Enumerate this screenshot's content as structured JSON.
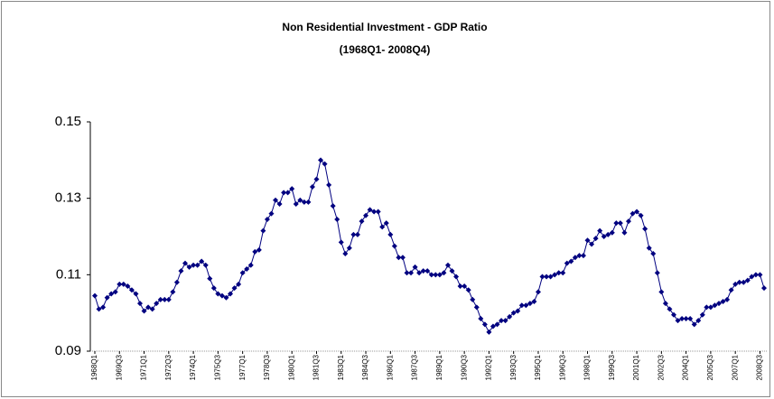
{
  "chart_data": {
    "type": "line",
    "title": "Non Residential Investment - GDP Ratio",
    "subtitle": "(1968Q1- 2008Q4)",
    "categories": [
      "1968Q1",
      null,
      null,
      null,
      null,
      null,
      "1969Q3",
      null,
      null,
      null,
      null,
      null,
      "1971Q1",
      null,
      null,
      null,
      null,
      null,
      "1972Q3",
      null,
      null,
      null,
      null,
      null,
      "1974Q1",
      null,
      null,
      null,
      null,
      null,
      "1975Q3",
      null,
      null,
      null,
      null,
      null,
      "1977Q1",
      null,
      null,
      null,
      null,
      null,
      "1978Q3",
      null,
      null,
      null,
      null,
      null,
      "1980Q1",
      null,
      null,
      null,
      null,
      null,
      "1981Q3",
      null,
      null,
      null,
      null,
      null,
      "1983Q1",
      null,
      null,
      null,
      null,
      null,
      "1984Q3",
      null,
      null,
      null,
      null,
      null,
      "1986Q1",
      null,
      null,
      null,
      null,
      null,
      "1987Q3",
      null,
      null,
      null,
      null,
      null,
      "1989Q1",
      null,
      null,
      null,
      null,
      null,
      "1990Q3",
      null,
      null,
      null,
      null,
      null,
      "1992Q1",
      null,
      null,
      null,
      null,
      null,
      "1993Q3",
      null,
      null,
      null,
      null,
      null,
      "1995Q1",
      null,
      null,
      null,
      null,
      null,
      "1996Q3",
      null,
      null,
      null,
      null,
      null,
      "1998Q1",
      null,
      null,
      null,
      null,
      null,
      "1999Q3",
      null,
      null,
      null,
      null,
      null,
      "2001Q1",
      null,
      null,
      null,
      null,
      null,
      "2002Q3",
      null,
      null,
      null,
      null,
      null,
      "2004Q1",
      null,
      null,
      null,
      null,
      null,
      "2005Q3",
      null,
      null,
      null,
      null,
      null,
      "2007Q1",
      null,
      null,
      null,
      null,
      null,
      "2008Q3",
      null
    ],
    "values": [
      0.1045,
      0.101,
      0.1015,
      0.104,
      0.105,
      0.1055,
      0.1075,
      0.1075,
      0.107,
      0.106,
      0.105,
      0.1025,
      0.1005,
      0.1015,
      0.101,
      0.1025,
      0.1035,
      0.1035,
      0.1035,
      0.1055,
      0.108,
      0.111,
      0.113,
      0.112,
      0.1125,
      0.1125,
      0.1135,
      0.1125,
      0.109,
      0.1065,
      0.105,
      0.1045,
      0.104,
      0.105,
      0.1065,
      0.1075,
      0.1105,
      0.1115,
      0.1125,
      0.116,
      0.1165,
      0.1215,
      0.1245,
      0.126,
      0.1295,
      0.1285,
      0.1315,
      0.1315,
      0.1325,
      0.1285,
      0.1295,
      0.129,
      0.129,
      0.133,
      0.135,
      0.14,
      0.139,
      0.1335,
      0.128,
      0.1245,
      0.1185,
      0.1155,
      0.117,
      0.1205,
      0.1205,
      0.124,
      0.1255,
      0.127,
      0.1265,
      0.1265,
      0.1225,
      0.1235,
      0.1205,
      0.1175,
      0.1145,
      0.1145,
      0.1105,
      0.1105,
      0.112,
      0.1105,
      0.111,
      0.111,
      0.11,
      0.11,
      0.11,
      0.1105,
      0.1125,
      0.111,
      0.1095,
      0.107,
      0.107,
      0.106,
      0.1035,
      0.1015,
      0.0985,
      0.097,
      0.095,
      0.0965,
      0.097,
      0.098,
      0.098,
      0.099,
      0.1,
      0.1005,
      0.102,
      0.102,
      0.1025,
      0.103,
      0.1055,
      0.1095,
      0.1095,
      0.1095,
      0.11,
      0.1105,
      0.1105,
      0.113,
      0.1135,
      0.1145,
      0.115,
      0.115,
      0.119,
      0.118,
      0.1195,
      0.1215,
      0.12,
      0.1205,
      0.121,
      0.1235,
      0.1235,
      0.121,
      0.124,
      0.126,
      0.1265,
      0.1255,
      0.122,
      0.117,
      0.1155,
      0.1105,
      0.1055,
      0.1025,
      0.101,
      0.0995,
      0.098,
      0.0985,
      0.0985,
      0.0985,
      0.097,
      0.098,
      0.0995,
      0.1015,
      0.1015,
      0.102,
      0.1025,
      0.103,
      0.1035,
      0.106,
      0.1075,
      0.108,
      0.108,
      0.1085,
      0.1095,
      0.11,
      0.11,
      0.1065
    ],
    "color": "#000080",
    "ylim": [
      0.09,
      0.15
    ],
    "yticks": [
      0.15,
      0.13,
      0.11,
      0.09
    ]
  }
}
